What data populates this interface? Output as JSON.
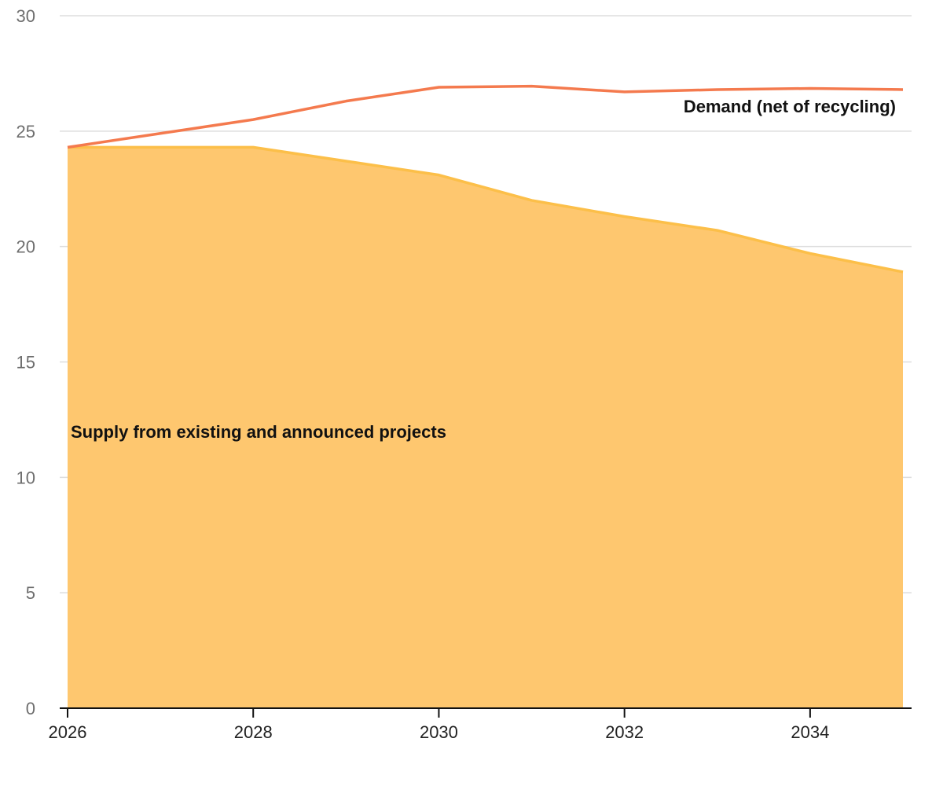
{
  "chart_data": {
    "type": "area",
    "x": [
      2026,
      2027,
      2028,
      2029,
      2030,
      2031,
      2032,
      2033,
      2034,
      2035
    ],
    "x_ticks": [
      "2026",
      "2028",
      "2030",
      "2032",
      "2034"
    ],
    "y_ticks": [
      "0",
      "5",
      "10",
      "15",
      "20",
      "25",
      "30"
    ],
    "ylim": [
      0,
      30
    ],
    "xlim": [
      2026,
      2035
    ],
    "grid": true,
    "series": [
      {
        "name": "Supply from existing and announced projects",
        "kind": "area",
        "color": "#fcbf49",
        "fill": "#fec76f",
        "values": [
          24.3,
          24.3,
          24.3,
          23.7,
          23.1,
          22.0,
          21.3,
          20.7,
          19.7,
          18.9
        ]
      },
      {
        "name": "Demand (net of recycling)",
        "kind": "line",
        "color": "#f47a4e",
        "values": [
          24.3,
          24.9,
          25.5,
          26.3,
          26.9,
          26.95,
          26.7,
          26.8,
          26.85,
          26.8
        ]
      }
    ]
  }
}
